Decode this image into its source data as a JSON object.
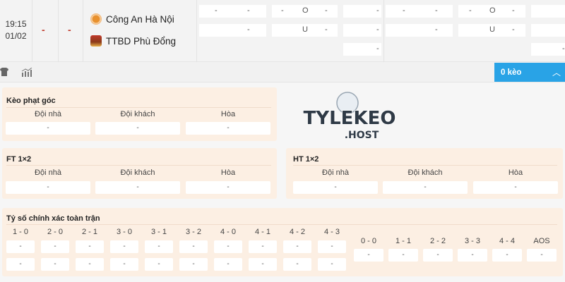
{
  "match": {
    "time": "19:15",
    "date": "01/02",
    "score1": "-",
    "score2": "-",
    "home": "Công An Hà Nội",
    "away": "TTBD Phù Đổng",
    "odds": {
      "row1": [
        [
          "-",
          "-"
        ],
        [
          "-",
          "O",
          "-"
        ],
        [
          "-"
        ],
        [
          "-",
          "-"
        ],
        [
          "-",
          "O",
          "-"
        ],
        [
          ""
        ]
      ],
      "row2": [
        [
          "-"
        ],
        [
          "U",
          "-"
        ],
        [
          "-"
        ],
        [
          "-"
        ],
        [
          "U",
          "-"
        ],
        [
          ""
        ]
      ],
      "row3": [
        [
          "-"
        ],
        [
          "-"
        ]
      ]
    }
  },
  "toolbar": {
    "keo_button": "0 kèo",
    "icons": [
      "shirt-icon",
      "stats-icon",
      "chevron-up-icon"
    ],
    "accent": "#29a3e6"
  },
  "logo": {
    "line1": "TYLEKEO",
    "line2": ".HOST"
  },
  "corner": {
    "title": "Kèo phạt góc",
    "labels": [
      "Đội nhà",
      "Đội khách",
      "Hòa"
    ],
    "values": [
      "-",
      "-",
      "-"
    ]
  },
  "ft": {
    "title": "FT 1×2",
    "labels": [
      "Đội nhà",
      "Đội khách",
      "Hòa"
    ],
    "values": [
      "-",
      "-",
      "-"
    ]
  },
  "ht": {
    "title": "HT 1×2",
    "labels": [
      "Đội nhà",
      "Đội khách",
      "Hòa"
    ],
    "values": [
      "-",
      "-",
      "-"
    ]
  },
  "correct_score": {
    "title": "Tỷ số chính xác toàn trận",
    "left_labels": [
      "1 - 0",
      "2 - 0",
      "2 - 1",
      "3 - 0",
      "3 - 1",
      "3 - 2",
      "4 - 0",
      "4 - 1",
      "4 - 2",
      "4 - 3"
    ],
    "left_row1": [
      "-",
      "-",
      "-",
      "-",
      "-",
      "-",
      "-",
      "-",
      "-",
      "-"
    ],
    "left_row2": [
      "-",
      "-",
      "-",
      "-",
      "-",
      "-",
      "-",
      "-",
      "-",
      "-"
    ],
    "right_labels": [
      "0 - 0",
      "1 - 1",
      "2 - 2",
      "3 - 3",
      "4 - 4",
      "AOS"
    ],
    "right_values": [
      "-",
      "-",
      "-",
      "-",
      "-",
      "-"
    ]
  }
}
